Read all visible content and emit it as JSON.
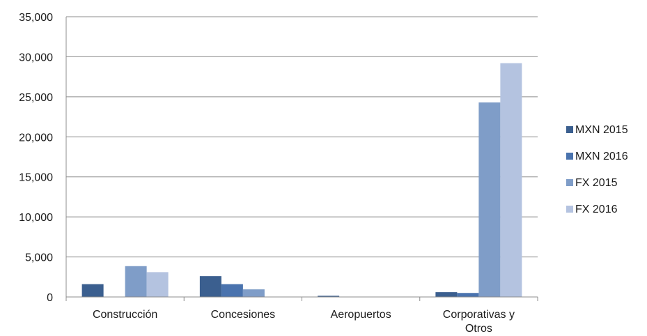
{
  "chart_data": {
    "type": "bar",
    "title": "",
    "xlabel": "",
    "ylabel": "",
    "categories": [
      [
        "Construcción"
      ],
      [
        "Concesiones"
      ],
      [
        "Aeropuertos"
      ],
      [
        "Corporativas y",
        "Otros"
      ]
    ],
    "series": [
      {
        "name": "MXN 2015",
        "color": "#3b5f8f",
        "values": [
          1600,
          2600,
          150,
          600
        ]
      },
      {
        "name": "MXN 2016",
        "color": "#4a73ae",
        "values": [
          0,
          1600,
          0,
          500
        ]
      },
      {
        "name": "FX 2015",
        "color": "#7f9dc8",
        "values": [
          3850,
          950,
          0,
          24300
        ]
      },
      {
        "name": "FX 2016",
        "color": "#b4c3e0",
        "values": [
          3100,
          0,
          0,
          29200
        ]
      }
    ],
    "ylim": [
      0,
      35000
    ],
    "yticks": [
      0,
      5000,
      10000,
      15000,
      20000,
      25000,
      30000,
      35000
    ],
    "ytick_labels": [
      "0",
      "5,000",
      "10,000",
      "15,000",
      "20,000",
      "25,000",
      "30,000",
      "35,000"
    ],
    "grid": true,
    "legend": "right"
  }
}
